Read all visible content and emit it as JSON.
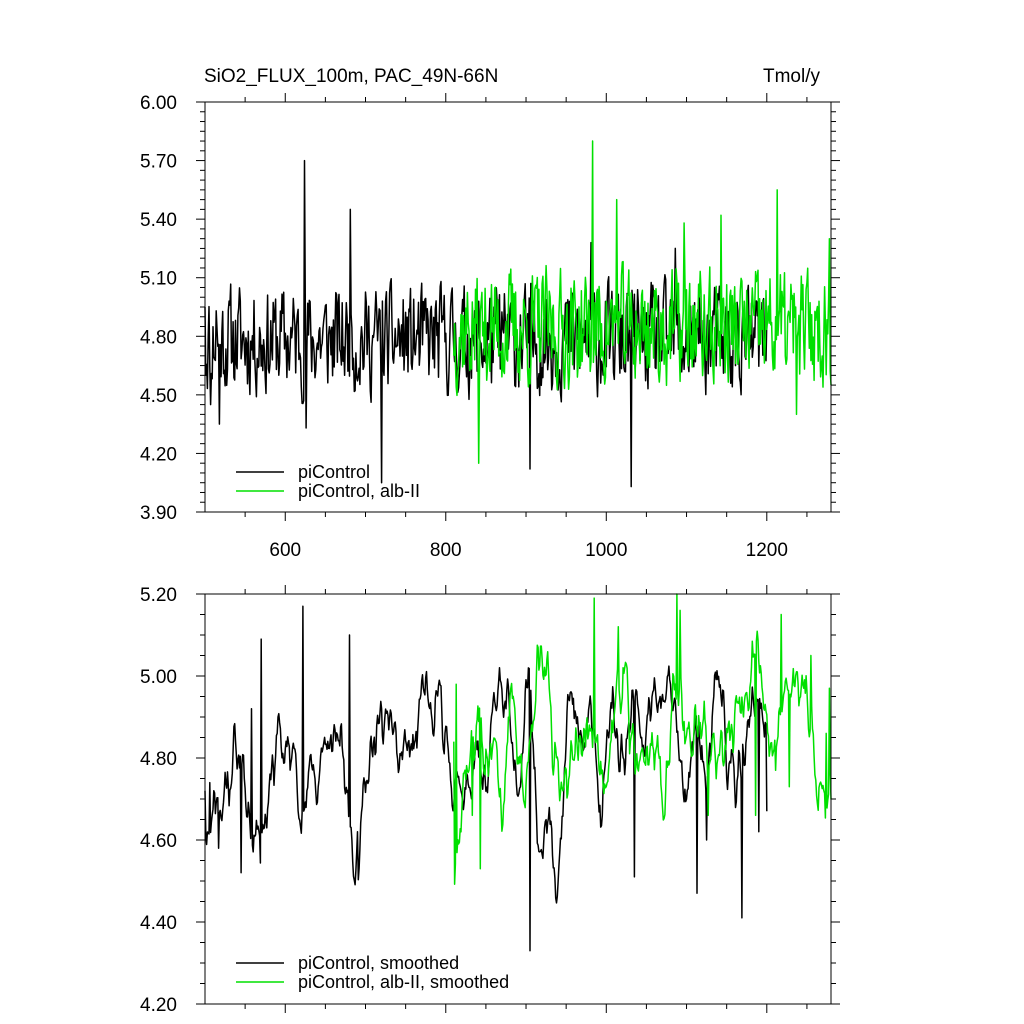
{
  "chart_data": [
    {
      "type": "line",
      "title": "SiO2_FLUX_100m, PAC_49N-66N",
      "units": "Tmol/y",
      "xlabel": "",
      "ylabel": "",
      "xlim": [
        500,
        1280
      ],
      "ylim": [
        3.9,
        6.0
      ],
      "x_ticks": [
        "600",
        "800",
        "1000",
        "1200"
      ],
      "y_ticks": [
        "3.90",
        "4.20",
        "4.50",
        "4.80",
        "5.10",
        "5.40",
        "5.70",
        "6.00"
      ],
      "series": [
        {
          "name": "piControl",
          "color": "#000000",
          "x_range": [
            500,
            1200
          ],
          "seed": 11,
          "noise": 0.24,
          "mean": 4.78,
          "key_points": [
            [
              500,
              4.95
            ],
            [
              501,
              4.6
            ],
            [
              507,
              4.45
            ],
            [
              514,
              4.93
            ],
            [
              518,
              4.35
            ],
            [
              624,
              5.7
            ],
            [
              626,
              4.33
            ],
            [
              681,
              5.45
            ],
            [
              720,
              4.05
            ],
            [
              905,
              4.12
            ],
            [
              1031,
              4.03
            ],
            [
              981,
              5.28
            ],
            [
              1086,
              5.25
            ]
          ]
        },
        {
          "name": "piControl, alb-II",
          "color": "#00e000",
          "x_range": [
            810,
            1280
          ],
          "seed": 37,
          "noise": 0.26,
          "mean": 4.84,
          "key_points": [
            [
              810,
              4.7
            ],
            [
              841,
              4.15
            ],
            [
              983,
              5.8
            ],
            [
              1013,
              5.5
            ],
            [
              1097,
              5.38
            ],
            [
              1143,
              5.42
            ],
            [
              1213,
              5.55
            ],
            [
              1237,
              4.4
            ],
            [
              1278,
              5.3
            ]
          ]
        }
      ]
    },
    {
      "type": "line",
      "title": "",
      "units": "",
      "xlabel": "",
      "ylabel": "",
      "xlim": [
        500,
        1280
      ],
      "ylim": [
        4.2,
        5.2
      ],
      "x_ticks": [],
      "y_ticks": [
        "4.20",
        "4.40",
        "4.60",
        "4.80",
        "5.00",
        "5.20"
      ],
      "series": [
        {
          "name": "piControl, smoothed",
          "color": "#000000",
          "x_range": [
            500,
            1200
          ],
          "seed": 11,
          "noise": 0.24,
          "mean": 4.78,
          "smooth": 7,
          "key_points": [
            [
              500,
              4.72
            ],
            [
              506,
              4.74
            ],
            [
              517,
              4.58
            ],
            [
              545,
              4.52
            ],
            [
              558,
              4.92
            ],
            [
              570,
              5.09
            ],
            [
              622,
              5.17
            ],
            [
              627,
              4.72
            ],
            [
              680,
              5.1
            ],
            [
              690,
              4.62
            ],
            [
              905,
              4.33
            ],
            [
              1125,
              4.6
            ],
            [
              1035,
              4.51
            ],
            [
              1113,
              4.47
            ],
            [
              1169,
              4.41
            ],
            [
              1190,
              4.62
            ],
            [
              1200,
              4.67
            ]
          ]
        },
        {
          "name": "piControl, alb-II, smoothed",
          "color": "#00e000",
          "x_range": [
            810,
            1280
          ],
          "seed": 37,
          "noise": 0.26,
          "mean": 4.84,
          "smooth": 7,
          "key_points": [
            [
              810,
              4.84
            ],
            [
              813,
              4.98
            ],
            [
              833,
              4.66
            ],
            [
              843,
              4.53
            ],
            [
              985,
              5.19
            ],
            [
              1015,
              5.12
            ],
            [
              1088,
              5.2
            ],
            [
              1092,
              5.16
            ],
            [
              1127,
              4.66
            ],
            [
              1186,
              4.66
            ],
            [
              1211,
              4.77
            ],
            [
              1218,
              5.15
            ],
            [
              1228,
              4.73
            ],
            [
              1255,
              5.05
            ],
            [
              1274,
              4.86
            ],
            [
              1278,
              4.97
            ]
          ]
        }
      ]
    }
  ],
  "legend_top": [
    "piControl",
    "piControl, alb-II"
  ],
  "legend_bottom": [
    "piControl, smoothed",
    "piControl, alb-II, smoothed"
  ]
}
